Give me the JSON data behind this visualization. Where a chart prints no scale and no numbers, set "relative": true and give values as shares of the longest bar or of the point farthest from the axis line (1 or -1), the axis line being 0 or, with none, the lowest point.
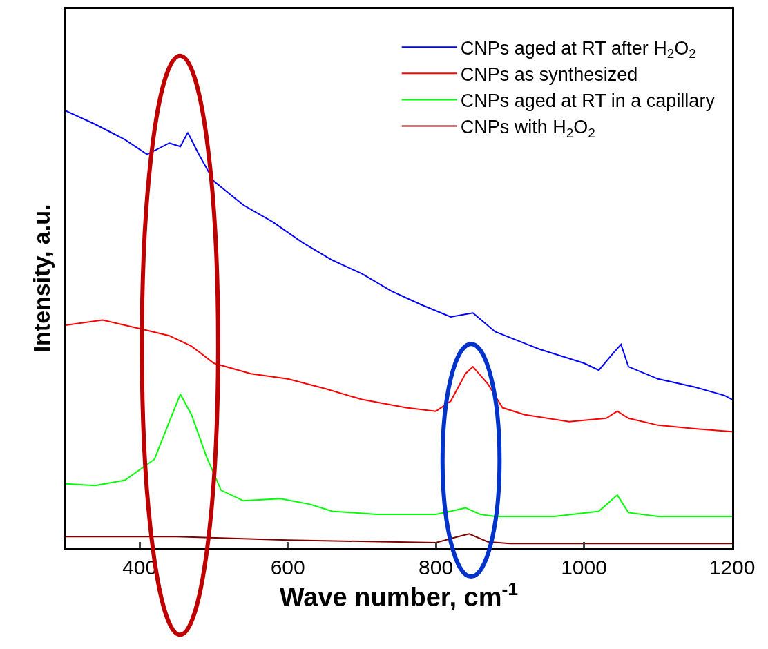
{
  "chart_data": {
    "type": "line",
    "relative": true,
    "xlabel": "Wave number, cm$^{-1}$",
    "ylabel": "Intensity, a.u.",
    "xlim": [
      300,
      1200
    ],
    "xticks": [
      400,
      600,
      800,
      1000,
      1200
    ],
    "legend": "top right",
    "marker": "none",
    "line_style": "solid",
    "series": [
      {
        "name": "CNPs aged at RT after H$_{2}$O$_{2}$",
        "color": "#0000ff",
        "x": [
          300,
          340,
          380,
          410,
          440,
          455,
          465,
          480,
          500,
          540,
          580,
          620,
          660,
          700,
          740,
          780,
          820,
          850,
          880,
          940,
          1000,
          1020,
          1040,
          1050,
          1060,
          1100,
          1150,
          1190,
          1200
        ],
        "values": [
          1.0,
          0.969,
          0.934,
          0.9,
          0.926,
          0.918,
          0.95,
          0.9,
          0.839,
          0.784,
          0.745,
          0.698,
          0.658,
          0.627,
          0.587,
          0.556,
          0.528,
          0.537,
          0.494,
          0.454,
          0.422,
          0.406,
          0.446,
          0.465,
          0.414,
          0.386,
          0.367,
          0.348,
          0.339
        ]
      },
      {
        "name": "CNPs as synthesized",
        "color": "#ff0000",
        "x": [
          300,
          350,
          400,
          440,
          470,
          500,
          550,
          600,
          650,
          700,
          760,
          800,
          820,
          840,
          850,
          870,
          890,
          920,
          980,
          1030,
          1045,
          1060,
          1100,
          1150,
          1200
        ],
        "values": [
          0.509,
          0.521,
          0.501,
          0.485,
          0.461,
          0.422,
          0.398,
          0.386,
          0.364,
          0.339,
          0.32,
          0.312,
          0.335,
          0.398,
          0.414,
          0.375,
          0.32,
          0.304,
          0.288,
          0.296,
          0.312,
          0.296,
          0.28,
          0.272,
          0.265
        ]
      },
      {
        "name": "CNPs aged at RT in a capillary",
        "color": "#00ff00",
        "x": [
          300,
          340,
          380,
          420,
          440,
          455,
          470,
          490,
          510,
          540,
          590,
          630,
          660,
          720,
          800,
          820,
          840,
          860,
          880,
          960,
          1020,
          1045,
          1060,
          1100,
          1200
        ],
        "values": [
          0.146,
          0.142,
          0.154,
          0.202,
          0.288,
          0.351,
          0.304,
          0.209,
          0.131,
          0.107,
          0.112,
          0.099,
          0.083,
          0.076,
          0.076,
          0.083,
          0.091,
          0.076,
          0.071,
          0.071,
          0.083,
          0.12,
          0.08,
          0.071,
          0.071
        ]
      },
      {
        "name": "CNPs with H$_{2}$O$_{2}$",
        "color": "#800000",
        "x": [
          300,
          450,
          600,
          800,
          830,
          845,
          870,
          900,
          1200
        ],
        "values": [
          0.025,
          0.025,
          0.017,
          0.011,
          0.025,
          0.031,
          0.013,
          0.009,
          0.009
        ]
      }
    ]
  }
}
